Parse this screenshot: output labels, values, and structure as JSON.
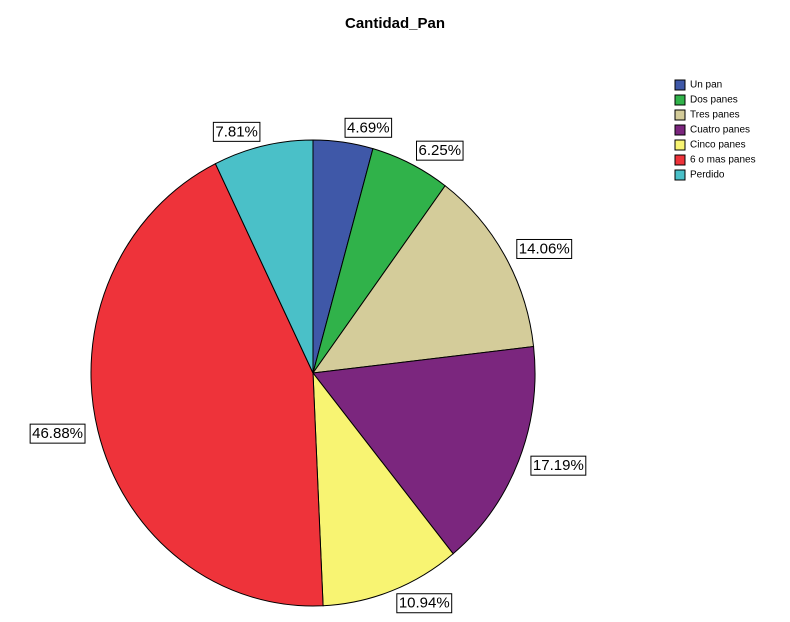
{
  "chart_data": {
    "type": "pie",
    "title": "Cantidad_Pan",
    "categories": [
      "Un pan",
      "Dos panes",
      "Tres panes",
      "Cuatro panes",
      "Cinco panes",
      "6 o mas panes",
      "Perdido"
    ],
    "values": [
      4.69,
      6.25,
      14.06,
      17.19,
      10.94,
      46.88,
      7.81
    ],
    "value_labels": [
      "4.69%",
      "6.25%",
      "14.06%",
      "17.19%",
      "10.94%",
      "46.88%",
      "7.81%"
    ],
    "colors": [
      "#3f58a8",
      "#30b24a",
      "#d4cc9a",
      "#7b267e",
      "#f8f472",
      "#ee333a",
      "#4ac0c8"
    ],
    "legend": "top-right"
  }
}
